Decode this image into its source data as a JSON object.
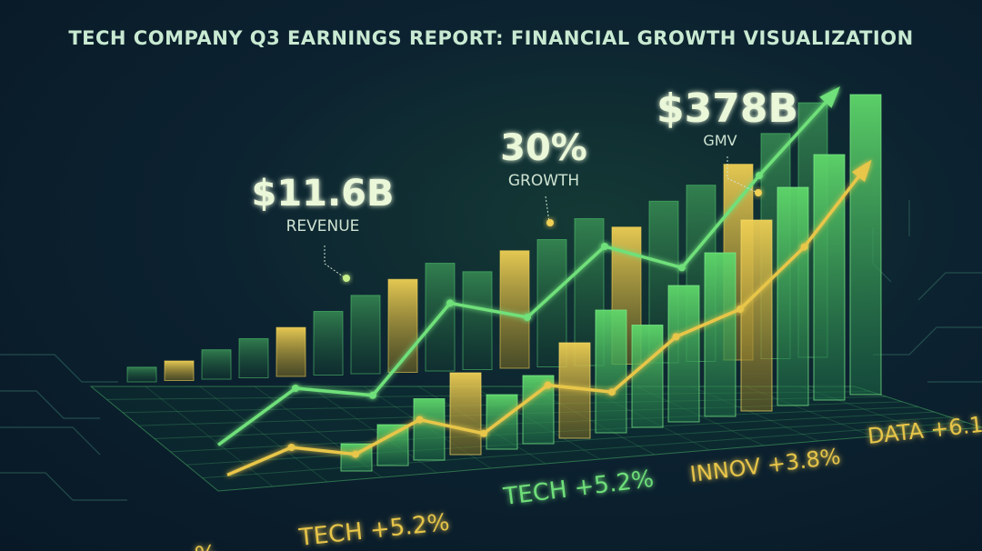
{
  "title": "TECH COMPANY Q3 EARNINGS REPORT: FINANCIAL GROWTH VISUALIZATION",
  "colors": {
    "background": "#0c2230",
    "green": "#6fe07a",
    "yellow": "#e8c64a",
    "text": "#c9ead2"
  },
  "annotations": [
    {
      "value": "$11.6B",
      "label": "REVENUE"
    },
    {
      "value": "30%",
      "label": "GROWTH"
    },
    {
      "value": "$378B",
      "label": "GMV"
    }
  ],
  "ticker": [
    {
      "text": "%",
      "color": "yellow"
    },
    {
      "text": "TECH  +5.2%",
      "color": "yellow"
    },
    {
      "text": "TECH  +5.2%",
      "color": "green"
    },
    {
      "text": "INNOV  +3.8%",
      "color": "yellow"
    },
    {
      "text": "DATA  +6.1",
      "color": "yellow"
    }
  ],
  "chart_data": {
    "type": "bar",
    "title": "TECH COMPANY Q3 EARNINGS REPORT: FINANCIAL GROWTH VISUALIZATION",
    "xlabel": "",
    "ylabel": "",
    "grid": true,
    "back_bars": [
      3,
      4,
      6,
      8,
      10,
      13,
      16,
      19,
      22,
      20,
      24,
      26,
      30,
      28,
      33,
      36,
      40,
      46,
      52
    ],
    "front_bars": [
      4,
      6,
      9,
      12,
      8,
      10,
      14,
      18,
      15,
      20,
      24,
      28,
      32,
      36,
      44
    ],
    "series": [
      {
        "color": "green",
        "values": [
          2,
          10,
          9,
          22,
          20,
          30,
          27,
          40,
          52
        ]
      },
      {
        "color": "yellow",
        "values": [
          1,
          5,
          4,
          9,
          7,
          14,
          13,
          21,
          25,
          34,
          46
        ]
      }
    ]
  }
}
